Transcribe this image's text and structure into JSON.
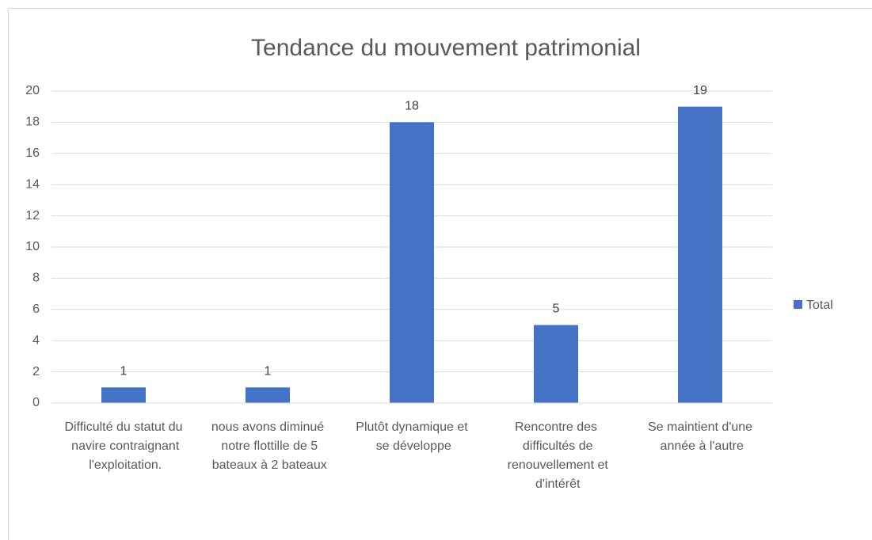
{
  "chart_data": {
    "type": "bar",
    "title": "Tendance du mouvement patrimonial",
    "categories": [
      "Difficulté du statut du navire contraignant l'exploitation.",
      "nous avons diminué notre flottille de 5 bateaux à 2 bateaux",
      "Plutôt dynamique et se développe",
      "Rencontre des difficultés de renouvellement et d'intérêt",
      "Se maintient d'une année à l'autre"
    ],
    "series": [
      {
        "name": "Total",
        "color": "#4472c4",
        "values": [
          1,
          1,
          18,
          5,
          19
        ]
      }
    ],
    "ylim": [
      0,
      20
    ],
    "yticks": [
      0,
      2,
      4,
      6,
      8,
      10,
      12,
      14,
      16,
      18,
      20
    ],
    "grid": true,
    "legend": "right"
  }
}
